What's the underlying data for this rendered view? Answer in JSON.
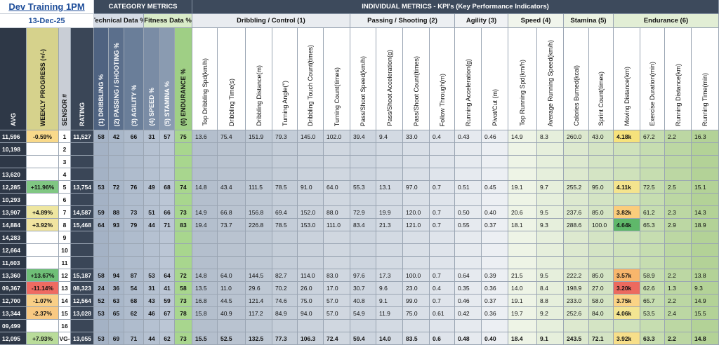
{
  "header": {
    "title": "Dev Training 1PM",
    "date": "13-Dec-25",
    "category_title": "CATEGORY METRICS",
    "individual_title": "INDIVIDUAL METRICS - KPI's (Key Performance Indicators)"
  },
  "left_columns": [
    "AVG",
    "WEEKLY PROGRESS (+/-)",
    "SENSOR #",
    "RATING"
  ],
  "category_groups": [
    {
      "label": "Technical Data %",
      "columns": [
        "(1) DRIBBLING %",
        "(2) PASSING / SHOOTING %",
        "(3) AGILITY %"
      ]
    },
    {
      "label": "Fitness Data %",
      "columns": [
        "(4) SPEED %",
        "(5) STAMINA %",
        "(6) ENDURANCE %"
      ]
    }
  ],
  "kpi_groups": [
    {
      "label": "Dribbling / Control (1)",
      "columns": [
        "Top Dribbling Spd(km/h)",
        "Dribbling Time(s)",
        "Dribbling Distance(m)",
        "Turning Angle(°)",
        "Dribbling Touch Count(times)",
        "Turning Count(times)"
      ]
    },
    {
      "label": "Passing / Shooting (2)",
      "columns": [
        "Pass/Shoot Speed(km/h)",
        "Pass/Shoot Acceleration(g)",
        "Pass/Shoot Count(times)",
        "Follow Through(m)"
      ]
    },
    {
      "label": "Agility (3)",
      "columns": [
        "Running Acceleration(g)",
        "Pivot/Cut (m)"
      ]
    },
    {
      "label": "Speed (4)",
      "columns": [
        "Top Running Spd(km/h)",
        "Average Running Speed(km/h)"
      ]
    },
    {
      "label": "Stamina (5)",
      "columns": [
        "Calories Burned(kcal)",
        "Sprint Count(times)"
      ]
    },
    {
      "label": "Endurance (6)",
      "columns": [
        "Moving Distance(km)",
        "Exercise Duration(min)",
        "Running Distance(km)",
        "Running Time(min)"
      ]
    }
  ],
  "rows": [
    {
      "avg": "11,596",
      "progress": "-0.59%",
      "progress_color": "#f9d98a",
      "sensor": "1",
      "rating": "11,527",
      "moving_color": "#f6e27c",
      "values": [
        "58",
        "42",
        "66",
        "31",
        "57",
        "75",
        "13.6",
        "75.4",
        "151.9",
        "79.3",
        "145.0",
        "102.0",
        "39.4",
        "9.4",
        "33.0",
        "0.4",
        "0.43",
        "0.46",
        "14.9",
        "8.3",
        "260.0",
        "43.0",
        "4.18k",
        "67.2",
        "2.2",
        "16.3"
      ]
    },
    {
      "avg": "10,198",
      "sensor": "2"
    },
    {
      "sensor": "3"
    },
    {
      "avg": "13,620",
      "sensor": "4"
    },
    {
      "avg": "12,285",
      "progress": "+11.96%",
      "progress_color": "#80c783",
      "sensor": "5",
      "rating": "13,754",
      "moving_color": "#f4e48e",
      "values": [
        "53",
        "72",
        "76",
        "49",
        "68",
        "74",
        "14.8",
        "43.4",
        "111.5",
        "78.5",
        "91.0",
        "64.0",
        "55.3",
        "13.1",
        "97.0",
        "0.7",
        "0.51",
        "0.45",
        "19.1",
        "9.7",
        "255.2",
        "95.0",
        "4.11k",
        "72.5",
        "2.5",
        "15.1"
      ]
    },
    {
      "avg": "10,293",
      "sensor": "6"
    },
    {
      "avg": "13,907",
      "progress": "+4.89%",
      "progress_color": "#eee6a0",
      "sensor": "7",
      "rating": "14,587",
      "moving_color": "#fbcd7c",
      "values": [
        "59",
        "88",
        "73",
        "51",
        "66",
        "73",
        "14.9",
        "66.8",
        "156.8",
        "69.4",
        "152.0",
        "88.0",
        "72.9",
        "19.9",
        "120.0",
        "0.7",
        "0.50",
        "0.40",
        "20.6",
        "9.5",
        "237.6",
        "85.0",
        "3.82k",
        "61.2",
        "2.3",
        "14.3"
      ]
    },
    {
      "avg": "14,884",
      "progress": "+3.92%",
      "progress_color": "#f1e4a0",
      "sensor": "8",
      "rating": "15,468",
      "moving_color": "#5fb86a",
      "values": [
        "64",
        "93",
        "79",
        "44",
        "71",
        "83",
        "19.4",
        "73.7",
        "226.8",
        "78.5",
        "153.0",
        "111.0",
        "83.4",
        "21.3",
        "121.0",
        "0.7",
        "0.55",
        "0.37",
        "18.1",
        "9.3",
        "288.6",
        "100.0",
        "4.64k",
        "65.3",
        "2.9",
        "18.9"
      ]
    },
    {
      "avg": "14,283",
      "sensor": "9"
    },
    {
      "avg": "12,664",
      "sensor": "10"
    },
    {
      "avg": "11,603",
      "sensor": "11"
    },
    {
      "avg": "13,360",
      "progress": "+13.67%",
      "progress_color": "#6fbf77",
      "sensor": "12",
      "rating": "15,187",
      "moving_color": "#f8b66c",
      "values": [
        "58",
        "94",
        "87",
        "53",
        "64",
        "72",
        "14.8",
        "64.0",
        "144.5",
        "82.7",
        "114.0",
        "83.0",
        "97.6",
        "17.3",
        "100.0",
        "0.7",
        "0.64",
        "0.39",
        "21.5",
        "9.5",
        "222.2",
        "85.0",
        "3.57k",
        "58.9",
        "2.2",
        "13.8"
      ]
    },
    {
      "avg": "09,367",
      "progress": "-11.14%",
      "progress_color": "#ef6b62",
      "sensor": "13",
      "rating": "08,323",
      "moving_color": "#ec6a5f",
      "values": [
        "24",
        "36",
        "54",
        "31",
        "41",
        "58",
        "13.5",
        "11.0",
        "29.6",
        "70.2",
        "26.0",
        "17.0",
        "30.7",
        "9.6",
        "23.0",
        "0.4",
        "0.35",
        "0.36",
        "14.0",
        "8.4",
        "198.9",
        "27.0",
        "3.20k",
        "62.6",
        "1.3",
        "9.3"
      ]
    },
    {
      "avg": "12,700",
      "progress": "-1.07%",
      "progress_color": "#f9cf86",
      "sensor": "14",
      "rating": "12,564",
      "moving_color": "#fbd385",
      "values": [
        "52",
        "63",
        "68",
        "43",
        "59",
        "73",
        "16.8",
        "44.5",
        "121.4",
        "74.6",
        "75.0",
        "57.0",
        "40.8",
        "9.1",
        "99.0",
        "0.7",
        "0.46",
        "0.37",
        "19.1",
        "8.8",
        "233.0",
        "58.0",
        "3.75k",
        "65.7",
        "2.2",
        "14.9"
      ]
    },
    {
      "avg": "13,344",
      "progress": "-2.37%",
      "progress_color": "#f9c982",
      "sensor": "15",
      "rating": "13,028",
      "moving_color": "#f3e592",
      "values": [
        "53",
        "65",
        "62",
        "46",
        "67",
        "78",
        "15.8",
        "40.9",
        "117.2",
        "84.9",
        "94.0",
        "57.0",
        "54.9",
        "11.9",
        "75.0",
        "0.61",
        "0.42",
        "0.36",
        "19.7",
        "9.2",
        "252.6",
        "84.0",
        "4.06k",
        "53.5",
        "2.4",
        "15.5"
      ]
    },
    {
      "avg": "09,499",
      "sensor": "16"
    },
    {
      "avg": "12,095",
      "progress": "+7.93%",
      "progress_color": "#b9dc9a",
      "sensor": "VG-",
      "rating": "13,055",
      "moving_color": "#f7df8a",
      "values": [
        "53",
        "69",
        "71",
        "44",
        "62",
        "73",
        "15.5",
        "52.5",
        "132.5",
        "77.3",
        "106.3",
        "72.4",
        "59.4",
        "14.0",
        "83.5",
        "0.6",
        "0.48",
        "0.40",
        "18.4",
        "9.1",
        "243.5",
        "72.1",
        "3.92k",
        "63.3",
        "2.2",
        "14.8"
      ]
    }
  ]
}
